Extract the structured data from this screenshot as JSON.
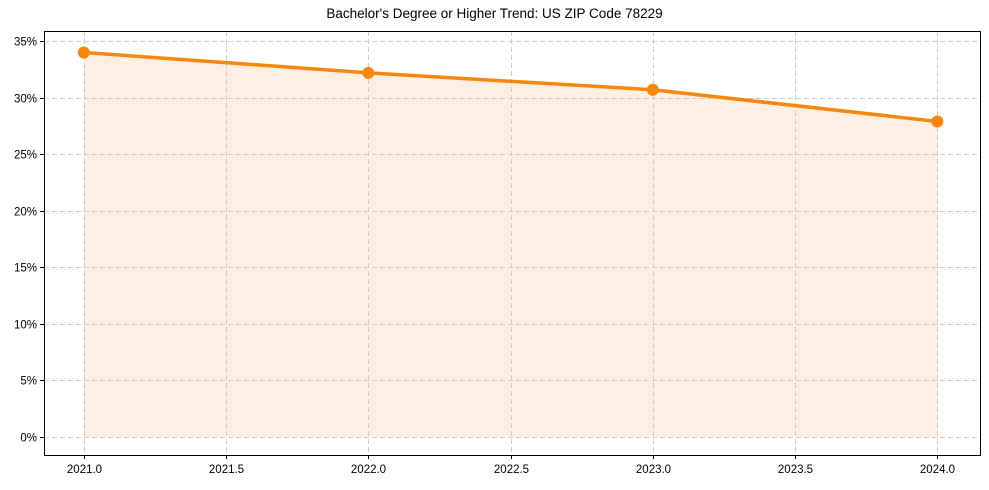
{
  "chart_data": {
    "type": "line",
    "title": "Bachelor's Degree or Higher Trend: US ZIP Code 78229",
    "xlabel": "",
    "ylabel": "",
    "x": [
      2021,
      2022,
      2023,
      2024
    ],
    "series": [
      {
        "name": "Bachelor's Degree or Higher",
        "values": [
          34.0,
          32.2,
          30.7,
          27.9
        ],
        "unit": "%"
      }
    ],
    "xlim": [
      2020.86,
      2024.15
    ],
    "ylim": [
      -1.6,
      35.9
    ],
    "x_ticks": [
      "2021.0",
      "2021.5",
      "2022.0",
      "2022.5",
      "2023.0",
      "2023.5",
      "2024.0"
    ],
    "y_ticks": [
      "0%",
      "5%",
      "10%",
      "15%",
      "20%",
      "25%",
      "30%",
      "35%"
    ],
    "grid": true,
    "legend": null,
    "fill_under_line": true,
    "markers": true
  },
  "style": {
    "line_color": "#f5870f",
    "fill_color": "#fdf0e3",
    "grid_color": "#cccccc",
    "axis_color": "#000000"
  }
}
